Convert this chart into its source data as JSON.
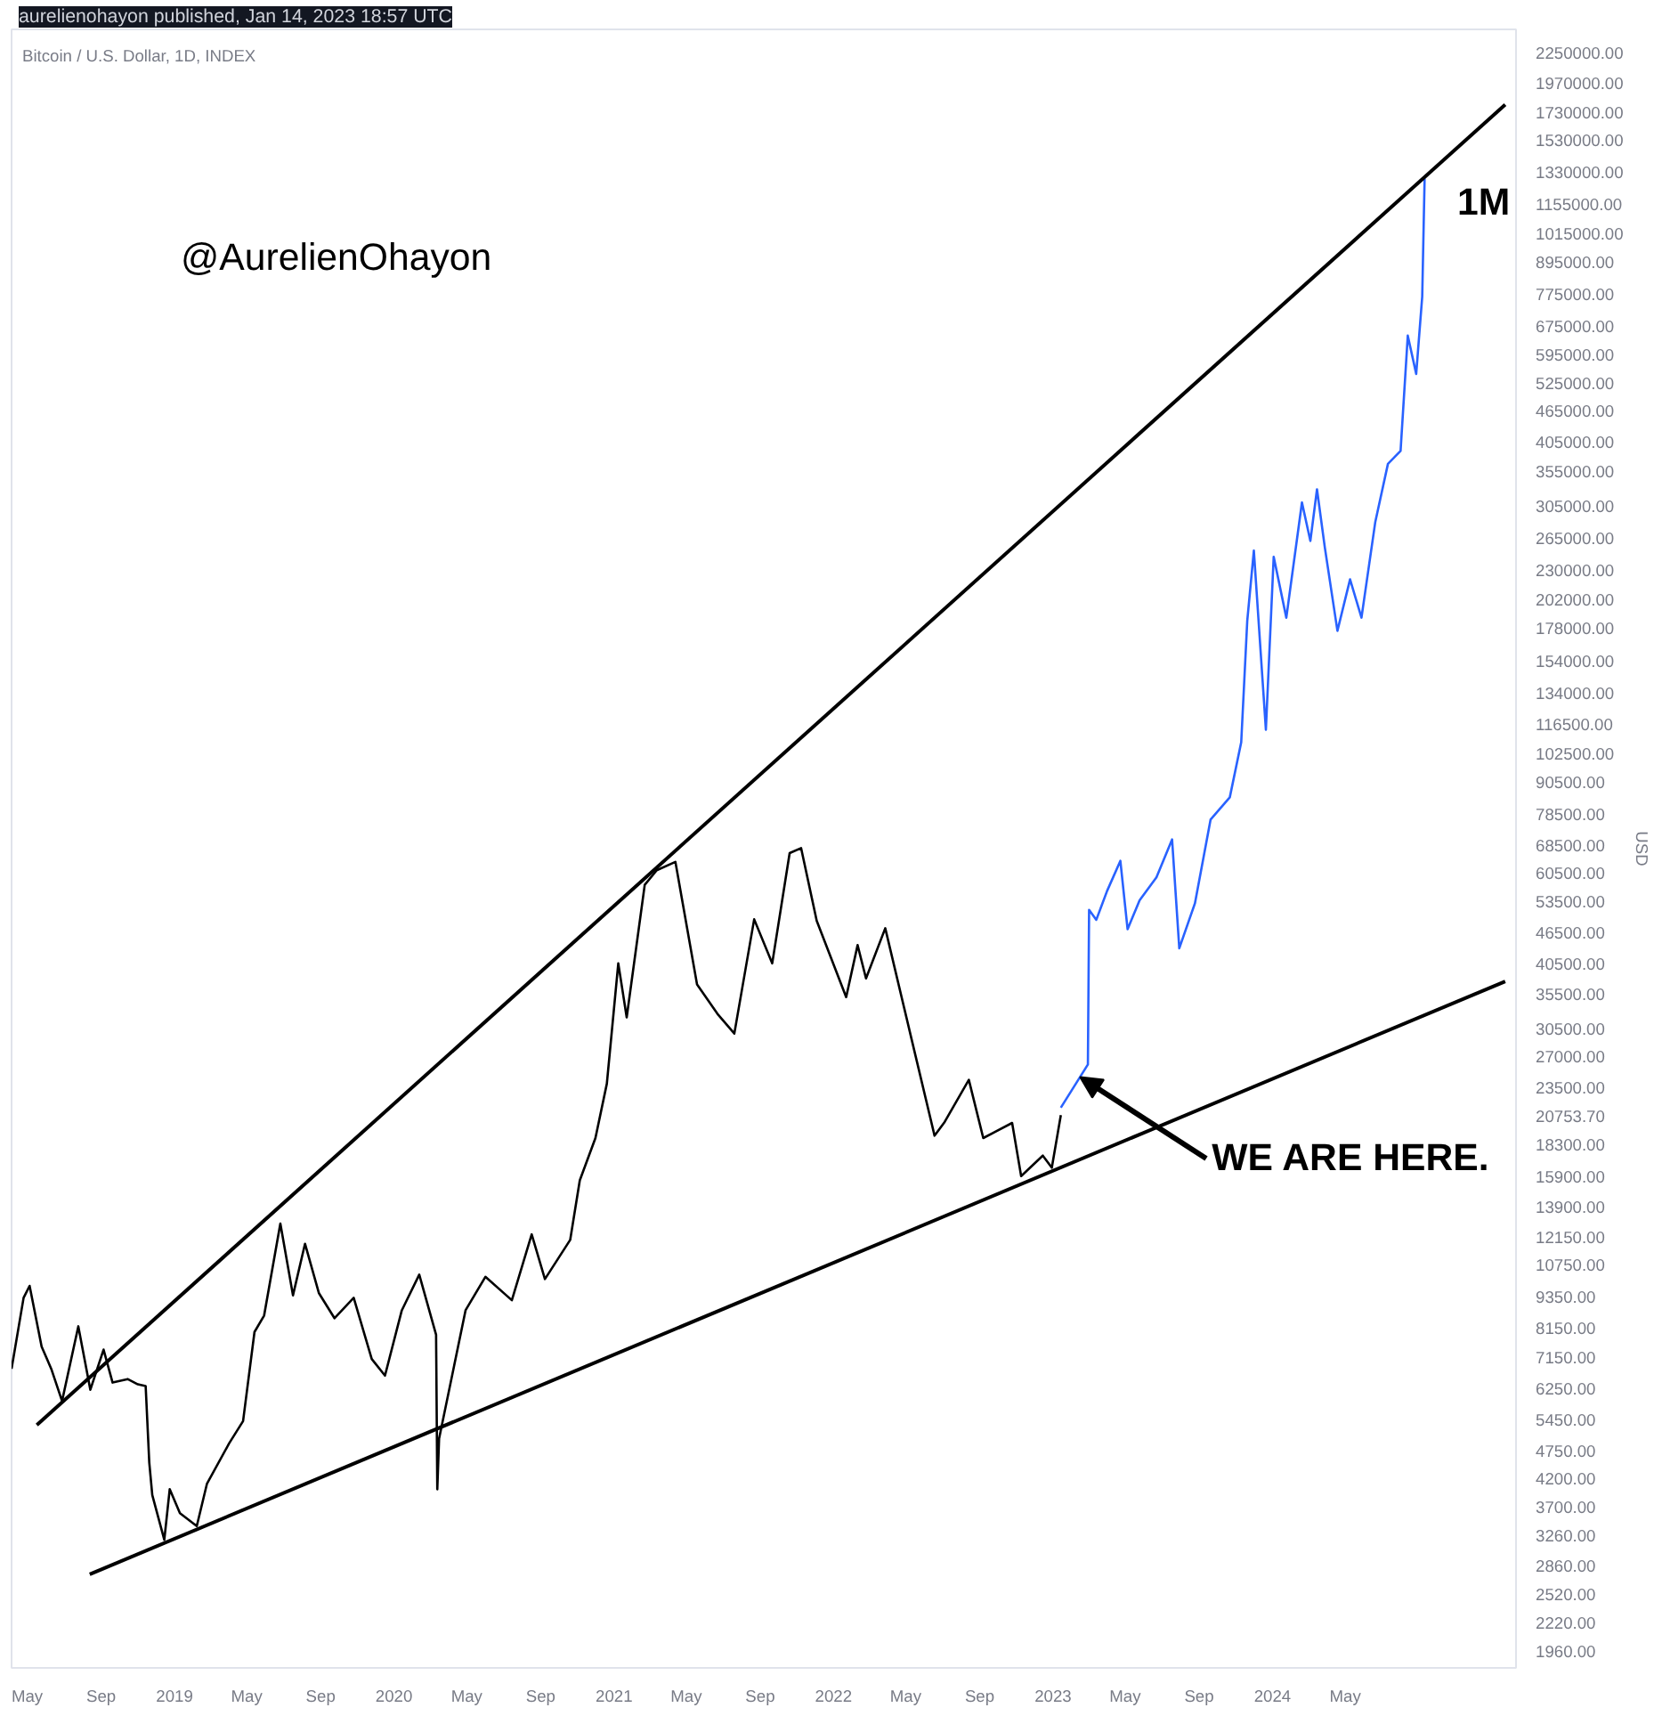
{
  "chart_data": {
    "type": "line",
    "title": "Bitcoin / U.S. Dollar, 1D, INDEX",
    "ylabel": "USD",
    "log": "y",
    "annotations": [
      "aurelienohayon published, Jan 14, 2023 18:57 UTC",
      "@AurelienOhayon",
      "1M",
      {
        "text": "WE ARE HERE.",
        "x": "2023-02-15",
        "y": 24600
      }
    ],
    "xlim": [
      "2018-04-05",
      "2025-02-09"
    ],
    "xticks": [
      {
        "value": "2018-05-01",
        "label": "May"
      },
      {
        "value": "2018-09-01",
        "label": "Sep"
      },
      {
        "value": "2019-01-01",
        "label": "2019"
      },
      {
        "value": "2019-05-01",
        "label": "May"
      },
      {
        "value": "2019-09-01",
        "label": "Sep"
      },
      {
        "value": "2020-01-01",
        "label": "2020"
      },
      {
        "value": "2020-05-01",
        "label": "May"
      },
      {
        "value": "2020-09-01",
        "label": "Sep"
      },
      {
        "value": "2021-01-01",
        "label": "2021"
      },
      {
        "value": "2021-05-01",
        "label": "May"
      },
      {
        "value": "2021-09-01",
        "label": "Sep"
      },
      {
        "value": "2022-01-01",
        "label": "2022"
      },
      {
        "value": "2022-05-01",
        "label": "May"
      },
      {
        "value": "2022-09-01",
        "label": "Sep"
      },
      {
        "value": "2023-01-01",
        "label": "2023"
      },
      {
        "value": "2023-05-01",
        "label": "May"
      },
      {
        "value": "2023-09-01",
        "label": "Sep"
      },
      {
        "value": "2024-01-01",
        "label": "2024"
      },
      {
        "value": "2024-05-01",
        "label": "May"
      }
    ],
    "ylim": [
      1820,
      2490000
    ],
    "yticks": [
      {
        "value": 1960,
        "label": "1960.00"
      },
      {
        "value": 2220,
        "label": "2220.00"
      },
      {
        "value": 2520,
        "label": "2520.00"
      },
      {
        "value": 2860,
        "label": "2860.00"
      },
      {
        "value": 3260,
        "label": "3260.00"
      },
      {
        "value": 3700,
        "label": "3700.00"
      },
      {
        "value": 4200,
        "label": "4200.00"
      },
      {
        "value": 4750,
        "label": "4750.00"
      },
      {
        "value": 5450,
        "label": "5450.00"
      },
      {
        "value": 6250,
        "label": "6250.00"
      },
      {
        "value": 7150,
        "label": "7150.00"
      },
      {
        "value": 8150,
        "label": "8150.00"
      },
      {
        "value": 9350,
        "label": "9350.00"
      },
      {
        "value": 10750,
        "label": "10750.00"
      },
      {
        "value": 12150,
        "label": "12150.00"
      },
      {
        "value": 13900,
        "label": "13900.00"
      },
      {
        "value": 15900,
        "label": "15900.00"
      },
      {
        "value": 18300,
        "label": "18300.00"
      },
      {
        "value": 20753.7,
        "label": "20753.70"
      },
      {
        "value": 23500,
        "label": "23500.00"
      },
      {
        "value": 27000,
        "label": "27000.00"
      },
      {
        "value": 30500,
        "label": "30500.00"
      },
      {
        "value": 35500,
        "label": "35500.00"
      },
      {
        "value": 40500,
        "label": "40500.00"
      },
      {
        "value": 46500,
        "label": "46500.00"
      },
      {
        "value": 53500,
        "label": "53500.00"
      },
      {
        "value": 60500,
        "label": "60500.00"
      },
      {
        "value": 68500,
        "label": "68500.00"
      },
      {
        "value": 78500,
        "label": "78500.00"
      },
      {
        "value": 90500,
        "label": "90500.00"
      },
      {
        "value": 102500,
        "label": "102500.00"
      },
      {
        "value": 116500,
        "label": "116500.00"
      },
      {
        "value": 134000,
        "label": "134000.00"
      },
      {
        "value": 154000,
        "label": "154000.00"
      },
      {
        "value": 178000,
        "label": "178000.00"
      },
      {
        "value": 202000,
        "label": "202000.00"
      },
      {
        "value": 230000,
        "label": "230000.00"
      },
      {
        "value": 265000,
        "label": "265000.00"
      },
      {
        "value": 305000,
        "label": "305000.00"
      },
      {
        "value": 355000,
        "label": "355000.00"
      },
      {
        "value": 405000,
        "label": "405000.00"
      },
      {
        "value": 465000,
        "label": "465000.00"
      },
      {
        "value": 525000,
        "label": "525000.00"
      },
      {
        "value": 595000,
        "label": "595000.00"
      },
      {
        "value": 675000,
        "label": "675000.00"
      },
      {
        "value": 775000,
        "label": "775000.00"
      },
      {
        "value": 895000,
        "label": "895000.00"
      },
      {
        "value": 1015000,
        "label": "1015000.00"
      },
      {
        "value": 1155000,
        "label": "1155000.00"
      },
      {
        "value": 1330000,
        "label": "1330000.00"
      },
      {
        "value": 1530000,
        "label": "1530000.00"
      },
      {
        "value": 1730000,
        "label": "1730000.00"
      },
      {
        "value": 1970000,
        "label": "1970000.00"
      },
      {
        "value": 2250000,
        "label": "2250000.00"
      }
    ],
    "series": [
      {
        "color": "#000000",
        "x": [
          "2018-04-05",
          "2018-04-25",
          "2018-05-05",
          "2018-05-25",
          "2018-06-10",
          "2018-06-28",
          "2018-07-25",
          "2018-08-14",
          "2018-09-05",
          "2018-09-20",
          "2018-10-15",
          "2018-11-01",
          "2018-11-14",
          "2018-11-20",
          "2018-11-25",
          "2018-12-15",
          "2018-12-24",
          "2019-01-10",
          "2019-02-07",
          "2019-02-24",
          "2019-04-02",
          "2019-04-25",
          "2019-05-14",
          "2019-05-30",
          "2019-06-26",
          "2019-07-17",
          "2019-08-06",
          "2019-08-29",
          "2019-09-24",
          "2019-10-26",
          "2019-11-25",
          "2019-12-17",
          "2020-01-14",
          "2020-02-12",
          "2020-03-11",
          "2020-03-13",
          "2020-03-16",
          "2020-04-29",
          "2020-06-01",
          "2020-07-15",
          "2020-08-17",
          "2020-09-08",
          "2020-10-20",
          "2020-11-05",
          "2020-12-01",
          "2020-12-20",
          "2021-01-08",
          "2021-01-22",
          "2021-02-21",
          "2021-03-13",
          "2021-04-13",
          "2021-05-19",
          "2021-06-22",
          "2021-07-20",
          "2021-08-22",
          "2021-09-21",
          "2021-10-20",
          "2021-11-08",
          "2021-12-04",
          "2022-01-22",
          "2022-02-10",
          "2022-02-24",
          "2022-03-28",
          "2022-05-11",
          "2022-06-18",
          "2022-07-05",
          "2022-08-14",
          "2022-09-07",
          "2022-10-25",
          "2022-11-09",
          "2022-12-15",
          "2022-12-30",
          "2023-01-14"
        ],
        "values": [
          6800,
          9300,
          9800,
          7500,
          6800,
          5900,
          8200,
          6200,
          7400,
          6400,
          6500,
          6350,
          6300,
          4500,
          3900,
          3200,
          4000,
          3600,
          3400,
          4100,
          4900,
          5400,
          8000,
          8600,
          12900,
          9400,
          11800,
          9500,
          8500,
          9300,
          7100,
          6600,
          8800,
          10300,
          7900,
          4000,
          5000,
          8800,
          10200,
          9200,
          12300,
          10100,
          12000,
          15600,
          18800,
          23900,
          40600,
          32000,
          57400,
          61200,
          63500,
          37000,
          32500,
          29800,
          49300,
          40600,
          66000,
          67500,
          49000,
          35000,
          44000,
          38000,
          47400,
          29000,
          19000,
          20200,
          24300,
          18800,
          20100,
          15900,
          17400,
          16500,
          20800
        ]
      },
      {
        "color": "#2962ff",
        "x": [
          "2023-01-14",
          "2023-02-28",
          "2023-03-02",
          "2023-03-14",
          "2023-04-01",
          "2023-04-23",
          "2023-05-05",
          "2023-05-25",
          "2023-06-22",
          "2023-07-18",
          "2023-07-30",
          "2023-08-25",
          "2023-09-20",
          "2023-10-22",
          "2023-11-10",
          "2023-11-20",
          "2023-12-01",
          "2023-12-21",
          "2024-01-03",
          "2024-01-24",
          "2024-02-19",
          "2024-03-04",
          "2024-03-15",
          "2024-03-28",
          "2024-04-18",
          "2024-05-09",
          "2024-05-28",
          "2024-06-20",
          "2024-07-11",
          "2024-08-01",
          "2024-08-13",
          "2024-08-27",
          "2024-09-06",
          "2024-09-10"
        ],
        "values": [
          21500,
          26000,
          51400,
          49200,
          55900,
          63800,
          47200,
          53600,
          59300,
          70100,
          43400,
          52900,
          76500,
          84400,
          107600,
          183500,
          250400,
          113700,
          243600,
          186300,
          309500,
          261300,
          328000,
          254000,
          175800,
          220600,
          186300,
          284300,
          367000,
          388500,
          645700,
          545500,
          767000,
          1291000
        ]
      },
      {
        "color": "#000000",
        "x": [
          "2018-05-17",
          "2025-01-22"
        ],
        "values": [
          5310,
          1787000
        ]
      },
      {
        "color": "#000000",
        "x": [
          "2018-08-13",
          "2025-01-22"
        ],
        "values": [
          2750,
          37500
        ]
      }
    ]
  }
}
